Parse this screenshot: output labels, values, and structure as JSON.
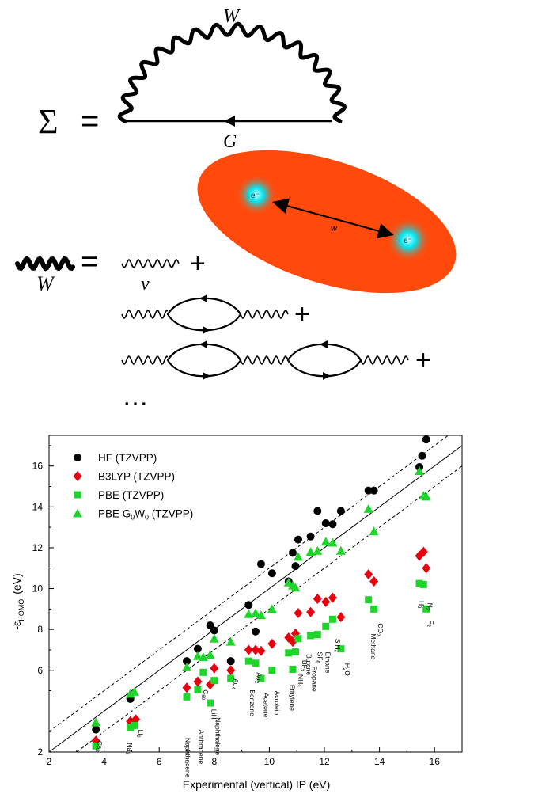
{
  "diagram": {
    "sigma_symbol": "Σ",
    "equals": "=",
    "w_label": "W",
    "g_label": "G",
    "w_left_label": "W",
    "v_label": "v",
    "plus": "+",
    "ellipsis": "…",
    "ellipse_w_label": "w",
    "electron_label": "e⁻",
    "colors": {
      "ellipse": "#ff4a0c",
      "electron": "#00e5f0"
    }
  },
  "chart_data": {
    "type": "scatter",
    "xlabel": "Experimental (vertical) IP (eV)",
    "ylabel": "-ε",
    "ylabel_sub": "HOMO",
    "ylabel_unit": "(eV)",
    "xlim": [
      2,
      17
    ],
    "ylim": [
      2,
      17.5
    ],
    "xticks": [
      "2",
      "4",
      "6",
      "8",
      "10",
      "12",
      "14",
      "16"
    ],
    "yticks": [
      "2",
      "6",
      "8",
      "10",
      "12",
      "14",
      "16"
    ],
    "legend": {
      "position": "top-left",
      "entries": [
        {
          "label": "HF (TZVPP)",
          "marker": "circle",
          "color": "#000000"
        },
        {
          "label": "B3LYP (TZVPP)",
          "marker": "diamond",
          "color": "#e8000f"
        },
        {
          "label": "PBE (TZVPP)",
          "marker": "square",
          "color": "#1ed62a"
        },
        {
          "label": "PBE G",
          "label_sub1": "0",
          "label_mid": "W",
          "label_sub2": "0",
          "label_end": " (TZVPP)",
          "marker": "triangle",
          "color": "#1ed62a"
        }
      ]
    },
    "reference_lines": [
      {
        "style": "solid",
        "offset": 0
      },
      {
        "style": "dashed",
        "offset": 1
      },
      {
        "style": "dashed",
        "offset": -1
      }
    ],
    "series": [
      {
        "name": "HF (TZVPP)",
        "marker": "circle",
        "color": "#000000",
        "x": [
          3.7,
          4.95,
          7.0,
          7.4,
          7.85,
          8.0,
          8.6,
          9.25,
          9.5,
          9.7,
          10.1,
          10.7,
          10.85,
          10.95,
          11.05,
          11.5,
          11.75,
          12.05,
          12.3,
          12.6,
          13.6,
          13.8,
          15.45,
          15.55,
          15.7
        ],
        "y": [
          3.1,
          4.6,
          6.45,
          7.05,
          8.2,
          7.95,
          6.45,
          9.2,
          7.9,
          11.2,
          10.75,
          10.35,
          11.75,
          11.1,
          12.4,
          12.55,
          13.8,
          13.2,
          13.15,
          13.8,
          14.8,
          14.8,
          15.95,
          16.5,
          17.3
        ]
      },
      {
        "name": "B3LYP (TZVPP)",
        "marker": "diamond",
        "color": "#e8000f",
        "x": [
          3.7,
          4.95,
          5.15,
          7.0,
          7.4,
          7.85,
          8.0,
          8.6,
          9.25,
          9.5,
          9.7,
          10.1,
          10.7,
          10.85,
          10.95,
          11.05,
          11.5,
          11.75,
          12.05,
          12.3,
          12.6,
          13.6,
          13.8,
          15.45,
          15.6,
          15.7
        ],
        "y": [
          2.55,
          3.5,
          3.6,
          5.15,
          5.45,
          5.3,
          6.1,
          6.0,
          7.0,
          7.0,
          6.95,
          7.3,
          7.6,
          7.4,
          7.8,
          8.8,
          8.85,
          9.5,
          9.35,
          9.55,
          8.6,
          10.7,
          10.35,
          11.6,
          11.8,
          11.0
        ]
      },
      {
        "name": "PBE (TZVPP)",
        "marker": "square",
        "color": "#1ed62a",
        "x": [
          3.7,
          4.95,
          5.1,
          7.0,
          7.4,
          7.6,
          7.85,
          8.0,
          8.6,
          9.25,
          9.5,
          9.7,
          10.1,
          10.7,
          10.85,
          10.95,
          11.05,
          11.5,
          11.75,
          12.05,
          12.3,
          12.6,
          13.6,
          13.8,
          15.45,
          15.6,
          15.7
        ],
        "y": [
          2.3,
          3.2,
          3.3,
          4.7,
          5.05,
          5.9,
          4.4,
          5.5,
          5.6,
          6.45,
          6.35,
          5.6,
          6.0,
          6.85,
          6.05,
          6.9,
          7.55,
          7.7,
          7.75,
          8.15,
          8.5,
          7.05,
          9.45,
          9.0,
          10.25,
          10.2,
          9.0
        ]
      },
      {
        "name": "PBE G0W0 (TZVPP)",
        "marker": "triangle",
        "color": "#1ed62a",
        "x": [
          3.7,
          4.95,
          5.1,
          7.0,
          7.4,
          7.6,
          7.85,
          8.0,
          8.6,
          9.25,
          9.5,
          9.7,
          10.1,
          10.7,
          10.85,
          10.95,
          11.05,
          11.5,
          11.75,
          12.05,
          12.3,
          12.6,
          13.6,
          13.8,
          15.45,
          15.6,
          15.7
        ],
        "y": [
          3.45,
          4.85,
          4.95,
          6.15,
          6.7,
          6.65,
          6.75,
          7.55,
          7.4,
          8.75,
          8.8,
          8.7,
          9.0,
          10.3,
          10.15,
          10.05,
          11.55,
          11.8,
          11.85,
          12.3,
          12.25,
          11.85,
          13.9,
          12.8,
          15.75,
          14.55,
          14.5
        ]
      }
    ],
    "annotations": [
      {
        "text": "Cs",
        "sub": "2",
        "x": 3.75,
        "y": 2.55,
        "rotate": 90
      },
      {
        "text": "Na",
        "sub": "2",
        "x": 4.85,
        "y": 2.45,
        "rotate": 90
      },
      {
        "text": "Li",
        "sub": "2",
        "x": 5.25,
        "y": 3.1,
        "rotate": 90
      },
      {
        "text": "Naphthacene",
        "x": 6.95,
        "y": 2.7,
        "rotate": 90
      },
      {
        "text": "Anthracene",
        "x": 7.45,
        "y": 3.1,
        "rotate": 90
      },
      {
        "text": "C",
        "sub": "60",
        "x": 7.6,
        "y": 5.05,
        "rotate": 90
      },
      {
        "text": "LiH",
        "x": 7.9,
        "y": 4.1,
        "rotate": 90
      },
      {
        "text": "Naphthalene",
        "x": 8.05,
        "y": 3.7,
        "rotate": 90
      },
      {
        "text": "Au",
        "sub": "4",
        "x": 8.7,
        "y": 5.6,
        "rotate": 90
      },
      {
        "text": "Benzene",
        "x": 9.3,
        "y": 5.05,
        "rotate": 90
      },
      {
        "text": "Au",
        "sub": "2",
        "x": 9.55,
        "y": 5.9,
        "rotate": 90
      },
      {
        "text": "Acetone",
        "x": 9.8,
        "y": 4.9,
        "rotate": 90
      },
      {
        "text": "Acrolein",
        "x": 10.2,
        "y": 5.0,
        "rotate": 90
      },
      {
        "text": "Ethylene",
        "x": 10.75,
        "y": 5.3,
        "rotate": 90
      },
      {
        "text": "NH",
        "sub": "3",
        "x": 11.05,
        "y": 5.8,
        "rotate": 90
      },
      {
        "text": "BF",
        "sub": "3",
        "x": 11.2,
        "y": 6.5,
        "rotate": 90
      },
      {
        "text": "Butane",
        "x": 11.35,
        "y": 6.8,
        "rotate": 90
      },
      {
        "text": "Propane",
        "x": 11.55,
        "y": 6.2,
        "rotate": 90
      },
      {
        "text": "SF",
        "sub": "6",
        "x": 11.75,
        "y": 6.9,
        "rotate": 90
      },
      {
        "text": "Ethane",
        "x": 12.05,
        "y": 6.9,
        "rotate": 90
      },
      {
        "text": "SiH",
        "sub": "4",
        "x": 12.4,
        "y": 7.55,
        "rotate": 90
      },
      {
        "text": "H",
        "sub": "2",
        "subAfter": "O",
        "x": 12.75,
        "y": 6.35,
        "rotate": 90
      },
      {
        "text": "CO",
        "sub": "2",
        "x": 13.95,
        "y": 8.3,
        "rotate": 90
      },
      {
        "text": "Methane",
        "x": 13.7,
        "y": 7.8,
        "rotate": 90
      },
      {
        "text": "N",
        "sub": "2",
        "x": 15.75,
        "y": 9.3,
        "rotate": 90
      },
      {
        "text": "H",
        "sub": "2",
        "x": 15.45,
        "y": 9.4,
        "rotate": 90
      },
      {
        "text": "F",
        "sub": "2",
        "x": 15.8,
        "y": 8.45,
        "rotate": 90
      }
    ]
  }
}
